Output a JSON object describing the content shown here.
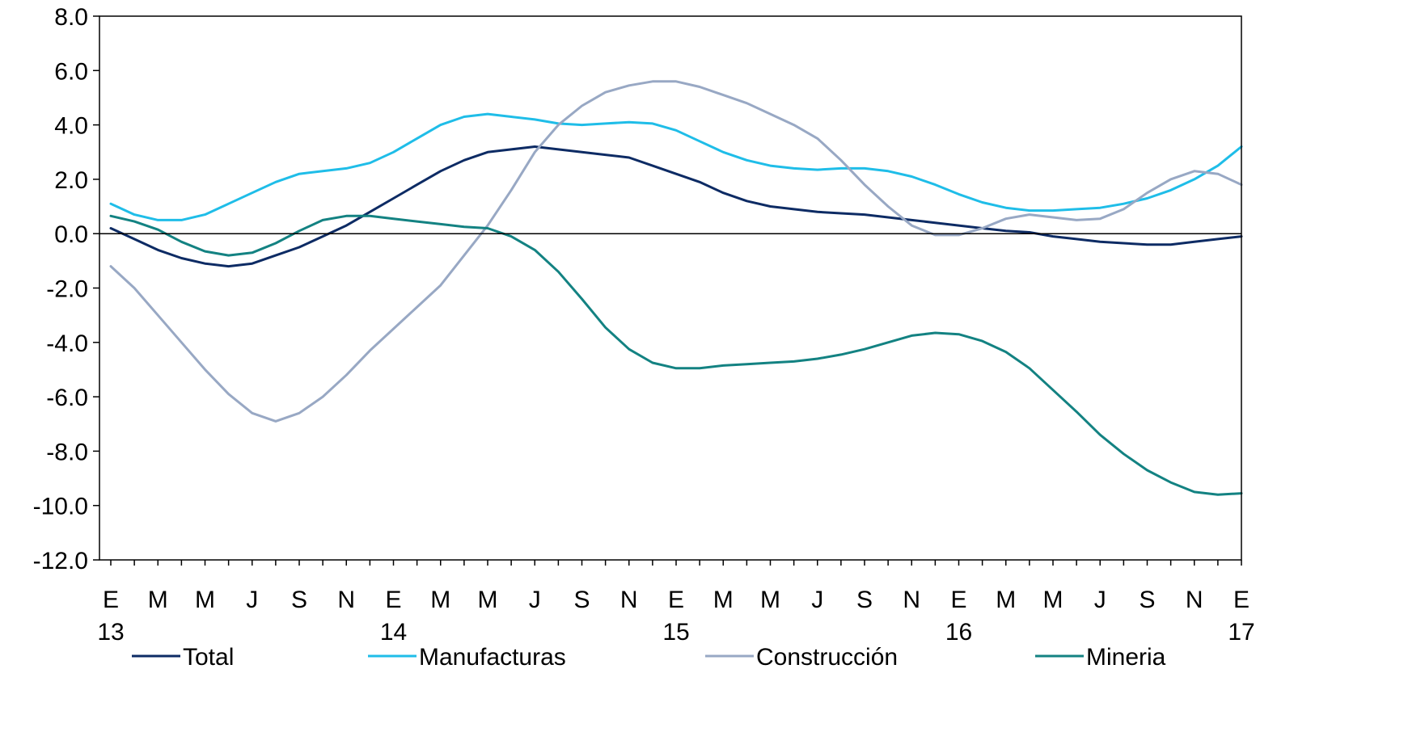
{
  "chart_data": {
    "type": "line",
    "title": "",
    "xlabel": "",
    "ylabel": "",
    "ylim": [
      -12,
      8
    ],
    "yticks": [
      "8.0",
      "6.0",
      "4.0",
      "2.0",
      "0.0",
      "-2.0",
      "-4.0",
      "-6.0",
      "-8.0",
      "-10.0",
      "-12.0"
    ],
    "ytick_values": [
      8,
      6,
      4,
      2,
      0,
      -2,
      -4,
      -6,
      -8,
      -10,
      -12
    ],
    "xtick_months": [
      "E",
      "M",
      "M",
      "J",
      "S",
      "N",
      "E",
      "M",
      "M",
      "J",
      "S",
      "N",
      "E",
      "M",
      "M",
      "J",
      "S",
      "N",
      "E",
      "M",
      "M",
      "J",
      "S",
      "N",
      "E"
    ],
    "xtick_years": [
      {
        "label": "13",
        "index": 0
      },
      {
        "label": "14",
        "index": 12
      },
      {
        "label": "15",
        "index": 24
      },
      {
        "label": "16",
        "index": 36
      },
      {
        "label": "17",
        "index": 48
      }
    ],
    "x_start": "2013-01",
    "x_end": "2017-01",
    "legend_position": "bottom",
    "zero_line": true,
    "series": [
      {
        "name": "Total",
        "color": "#0d2b64",
        "values": [
          0.2,
          -0.2,
          -0.6,
          -0.9,
          -1.1,
          -1.2,
          -1.1,
          -0.8,
          -0.5,
          -0.1,
          0.3,
          0.8,
          1.3,
          1.8,
          2.3,
          2.7,
          3.0,
          3.1,
          3.2,
          3.1,
          3.0,
          2.9,
          2.8,
          2.5,
          2.2,
          1.9,
          1.5,
          1.2,
          1.0,
          0.9,
          0.8,
          0.75,
          0.7,
          0.6,
          0.5,
          0.4,
          0.3,
          0.2,
          0.1,
          0.05,
          -0.1,
          -0.2,
          -0.3,
          -0.35,
          -0.4,
          -0.4,
          -0.3,
          -0.2,
          -0.1
        ]
      },
      {
        "name": "Manufacturas",
        "color": "#1fbde8",
        "values": [
          1.1,
          0.7,
          0.5,
          0.5,
          0.7,
          1.1,
          1.5,
          1.9,
          2.2,
          2.3,
          2.4,
          2.6,
          3.0,
          3.5,
          4.0,
          4.3,
          4.4,
          4.3,
          4.2,
          4.05,
          4.0,
          4.05,
          4.1,
          4.05,
          3.8,
          3.4,
          3.0,
          2.7,
          2.5,
          2.4,
          2.35,
          2.4,
          2.4,
          2.3,
          2.1,
          1.8,
          1.45,
          1.15,
          0.95,
          0.85,
          0.85,
          0.9,
          0.95,
          1.1,
          1.3,
          1.6,
          2.0,
          2.5,
          3.2
        ]
      },
      {
        "name": "Construcción",
        "color": "#98a8c4",
        "values": [
          -1.2,
          -2.0,
          -3.0,
          -4.0,
          -5.0,
          -5.9,
          -6.6,
          -6.9,
          -6.6,
          -6.0,
          -5.2,
          -4.3,
          -3.5,
          -2.7,
          -1.9,
          -0.8,
          0.3,
          1.6,
          3.0,
          4.0,
          4.7,
          5.2,
          5.45,
          5.6,
          5.6,
          5.4,
          5.1,
          4.8,
          4.4,
          4.0,
          3.5,
          2.7,
          1.8,
          1.0,
          0.3,
          -0.05,
          -0.05,
          0.2,
          0.55,
          0.7,
          0.6,
          0.5,
          0.55,
          0.9,
          1.5,
          2.0,
          2.3,
          2.2,
          1.8
        ]
      },
      {
        "name": "Mineria",
        "color": "#138282",
        "values": [
          0.65,
          0.45,
          0.15,
          -0.3,
          -0.65,
          -0.8,
          -0.7,
          -0.35,
          0.1,
          0.5,
          0.65,
          0.65,
          0.55,
          0.45,
          0.35,
          0.25,
          0.2,
          -0.1,
          -0.6,
          -1.4,
          -2.4,
          -3.45,
          -4.25,
          -4.75,
          -4.95,
          -4.95,
          -4.85,
          -4.8,
          -4.75,
          -4.7,
          -4.6,
          -4.45,
          -4.25,
          -4.0,
          -3.75,
          -3.65,
          -3.7,
          -3.95,
          -4.35,
          -4.95,
          -5.75,
          -6.55,
          -7.4,
          -8.1,
          -8.7,
          -9.15,
          -9.5,
          -9.6,
          -9.55
        ]
      }
    ]
  }
}
